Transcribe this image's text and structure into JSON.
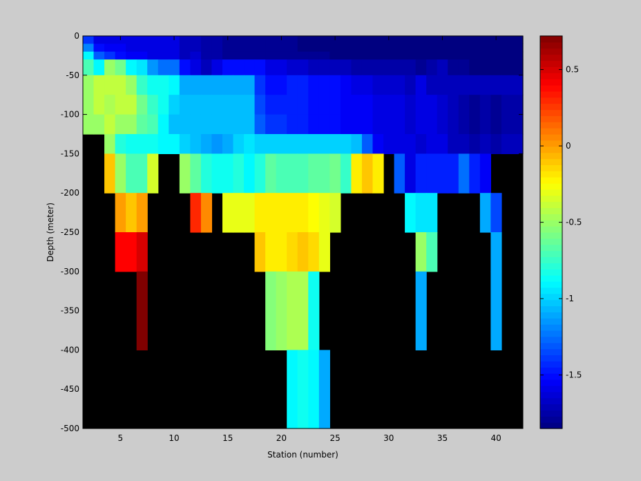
{
  "chart_data": {
    "type": "heatmap",
    "title": "",
    "xlabel": "Station (number)",
    "ylabel": "Depth (meter)",
    "xlim": [
      1.5,
      42.5
    ],
    "ylim": [
      -500,
      0
    ],
    "x": [
      2,
      3,
      4,
      5,
      6,
      7,
      8,
      9,
      10,
      11,
      12,
      13,
      14,
      15,
      16,
      17,
      18,
      19,
      20,
      21,
      22,
      23,
      24,
      25,
      26,
      27,
      28,
      29,
      30,
      31,
      32,
      33,
      34,
      35,
      36,
      37,
      38,
      39,
      40,
      41,
      42
    ],
    "depth_levels": [
      -5,
      -15,
      -25,
      -37.5,
      -62.5,
      -87.5,
      -112.5,
      -137.5,
      -175,
      -225,
      -275,
      -350,
      -450
    ],
    "depth_edges": [
      0,
      -10,
      -20,
      -30,
      -50,
      -75,
      -100,
      -125,
      -150,
      -200,
      -250,
      -300,
      -400,
      -500
    ],
    "xticks": [
      5,
      10,
      15,
      20,
      25,
      30,
      35,
      40
    ],
    "xticklabels": [
      "5",
      "10",
      "15",
      "20",
      "25",
      "30",
      "35",
      "40"
    ],
    "yticks": [
      0,
      -50,
      -100,
      -150,
      -200,
      -250,
      -300,
      -350,
      -400,
      -450,
      -500
    ],
    "yticklabels": [
      "0",
      "-50",
      "-100",
      "-150",
      "-200",
      "-250",
      "-300",
      "-350",
      "-400",
      "-450",
      "-500"
    ],
    "colorbar": {
      "clim": [
        -1.85,
        0.72
      ],
      "ticks": [
        -1.5,
        -1,
        -0.5,
        0,
        0.5
      ],
      "ticklabels": [
        "-1.5",
        "-1",
        "-0.5",
        "0",
        "0.5"
      ],
      "colormap": "jet"
    },
    "missing_color": "#000000",
    "background_color": "#cccccc",
    "values": [
      [
        -1.4,
        -1.6,
        -1.6,
        -1.6,
        -1.6,
        -1.6,
        -1.6,
        -1.6,
        -1.6,
        -1.7,
        -1.7,
        -1.75,
        -1.75,
        -1.8,
        -1.8,
        -1.8,
        -1.8,
        -1.8,
        -1.8,
        -1.8,
        -1.85,
        -1.85,
        -1.85,
        -1.85,
        -1.85,
        -1.85,
        -1.85,
        -1.85,
        -1.85,
        -1.85,
        -1.85,
        -1.85,
        -1.85,
        -1.85,
        -1.85,
        -1.85,
        -1.85,
        -1.85,
        -1.85,
        -1.85,
        -1.85
      ],
      [
        -1.2,
        -1.5,
        -1.55,
        -1.55,
        -1.6,
        -1.6,
        -1.6,
        -1.6,
        -1.6,
        -1.7,
        -1.7,
        -1.75,
        -1.75,
        -1.8,
        -1.8,
        -1.8,
        -1.8,
        -1.8,
        -1.8,
        -1.8,
        -1.85,
        -1.85,
        -1.85,
        -1.85,
        -1.85,
        -1.85,
        -1.85,
        -1.85,
        -1.85,
        -1.85,
        -1.85,
        -1.85,
        -1.85,
        -1.85,
        -1.85,
        -1.85,
        -1.85,
        -1.85,
        -1.85,
        -1.85,
        -1.85
      ],
      [
        -0.9,
        -1.3,
        -1.4,
        -1.5,
        -1.55,
        -1.55,
        -1.6,
        -1.6,
        -1.6,
        -1.7,
        -1.65,
        -1.75,
        -1.75,
        -1.8,
        -1.8,
        -1.8,
        -1.8,
        -1.8,
        -1.8,
        -1.8,
        -1.8,
        -1.8,
        -1.8,
        -1.85,
        -1.85,
        -1.85,
        -1.85,
        -1.85,
        -1.85,
        -1.85,
        -1.85,
        -1.85,
        -1.85,
        -1.85,
        -1.85,
        -1.85,
        -1.85,
        -1.85,
        -1.85,
        -1.85,
        -1.85
      ],
      [
        -0.7,
        -0.9,
        -0.5,
        -0.6,
        -0.9,
        -0.95,
        -1.15,
        -1.25,
        -1.25,
        -1.5,
        -1.6,
        -1.7,
        -1.6,
        -1.5,
        -1.5,
        -1.5,
        -1.5,
        -1.6,
        -1.6,
        -1.65,
        -1.65,
        -1.7,
        -1.7,
        -1.7,
        -1.7,
        -1.75,
        -1.75,
        -1.75,
        -1.75,
        -1.75,
        -1.75,
        -1.8,
        -1.75,
        -1.7,
        -1.8,
        -1.8,
        -1.85,
        -1.85,
        -1.85,
        -1.85,
        -1.85
      ],
      [
        -0.5,
        -0.4,
        -0.4,
        -0.4,
        -0.5,
        -0.75,
        -0.85,
        -0.85,
        -0.9,
        -1.1,
        -1.1,
        -1.1,
        -1.1,
        -1.1,
        -1.1,
        -1.1,
        -1.4,
        -1.5,
        -1.5,
        -1.45,
        -1.45,
        -1.5,
        -1.5,
        -1.5,
        -1.55,
        -1.6,
        -1.6,
        -1.65,
        -1.65,
        -1.65,
        -1.7,
        -1.6,
        -1.7,
        -1.7,
        -1.7,
        -1.7,
        -1.7,
        -1.7,
        -1.7,
        -1.7,
        -1.7
      ],
      [
        -0.5,
        -0.4,
        -0.45,
        -0.4,
        -0.4,
        -0.6,
        -0.75,
        -0.85,
        -1.0,
        -1.05,
        -1.05,
        -1.05,
        -1.05,
        -1.05,
        -1.05,
        -1.05,
        -1.35,
        -1.45,
        -1.45,
        -1.45,
        -1.45,
        -1.5,
        -1.5,
        -1.5,
        -1.55,
        -1.55,
        -1.55,
        -1.6,
        -1.6,
        -1.6,
        -1.65,
        -1.6,
        -1.6,
        -1.65,
        -1.7,
        -1.75,
        -1.8,
        -1.75,
        -1.8,
        -1.75,
        -1.75
      ],
      [
        -0.5,
        -0.5,
        -0.4,
        -0.5,
        -0.5,
        -0.65,
        -0.7,
        -0.9,
        -1.05,
        -1.05,
        -1.05,
        -1.05,
        -1.05,
        -1.05,
        -1.05,
        -1.05,
        -1.3,
        -1.4,
        -1.4,
        -1.45,
        -1.45,
        -1.5,
        -1.5,
        -1.5,
        -1.55,
        -1.55,
        -1.55,
        -1.6,
        -1.6,
        -1.6,
        -1.65,
        -1.6,
        -1.6,
        -1.65,
        -1.7,
        -1.75,
        -1.8,
        -1.75,
        -1.8,
        -1.75,
        -1.75
      ],
      [
        null,
        null,
        -0.5,
        -0.8,
        -0.85,
        -0.85,
        -0.85,
        -0.9,
        -0.9,
        -1.0,
        -1.05,
        -1.1,
        -1.15,
        -1.1,
        -1.0,
        -0.95,
        -1.0,
        -1.0,
        -1.0,
        -1.0,
        -1.0,
        -1.0,
        -1.0,
        -1.0,
        -1.0,
        -1.05,
        -1.3,
        -1.55,
        -1.6,
        -1.6,
        -1.6,
        -1.65,
        -1.6,
        -1.6,
        -1.7,
        -1.7,
        -1.75,
        -1.7,
        -1.75,
        -1.7,
        -1.7
      ],
      [
        null,
        null,
        -0.1,
        -0.5,
        -0.7,
        -0.7,
        -0.35,
        null,
        null,
        -0.5,
        -0.65,
        -0.8,
        -0.85,
        -0.85,
        -0.8,
        -0.9,
        -0.8,
        -0.65,
        -0.7,
        -0.7,
        -0.7,
        -0.65,
        -0.65,
        -0.6,
        -0.75,
        -0.2,
        -0.1,
        -0.2,
        null,
        -1.3,
        -1.6,
        -1.45,
        -1.45,
        -1.45,
        -1.45,
        -1.25,
        -1.45,
        -1.55,
        null,
        null,
        null
      ],
      [
        null,
        null,
        null,
        0.0,
        -0.1,
        0.0,
        null,
        null,
        null,
        null,
        0.3,
        0.05,
        null,
        -0.3,
        -0.3,
        -0.3,
        -0.2,
        -0.2,
        -0.2,
        -0.2,
        -0.2,
        -0.25,
        -0.3,
        -0.35,
        null,
        null,
        null,
        null,
        null,
        null,
        -0.9,
        -0.95,
        -0.95,
        null,
        null,
        null,
        null,
        -1.1,
        -1.35,
        null,
        null
      ],
      [
        null,
        null,
        null,
        0.4,
        0.4,
        0.5,
        null,
        null,
        null,
        null,
        null,
        null,
        null,
        null,
        null,
        null,
        -0.1,
        -0.2,
        -0.2,
        -0.15,
        -0.1,
        -0.15,
        -0.3,
        null,
        null,
        null,
        null,
        null,
        null,
        null,
        null,
        -0.5,
        -0.7,
        null,
        null,
        null,
        null,
        null,
        -1.1,
        null,
        null
      ],
      [
        null,
        null,
        null,
        null,
        null,
        0.72,
        null,
        null,
        null,
        null,
        null,
        null,
        null,
        null,
        null,
        null,
        null,
        -0.55,
        -0.5,
        -0.45,
        -0.45,
        -0.85,
        null,
        null,
        null,
        null,
        null,
        null,
        null,
        null,
        null,
        -1.1,
        null,
        null,
        null,
        null,
        null,
        null,
        -1.1,
        null,
        null
      ],
      [
        null,
        null,
        null,
        null,
        null,
        null,
        null,
        null,
        null,
        null,
        null,
        null,
        null,
        null,
        null,
        null,
        null,
        null,
        null,
        -0.9,
        -0.85,
        -0.9,
        -1.1,
        null,
        null,
        null,
        null,
        null,
        null,
        null,
        null,
        null,
        null,
        null,
        null,
        null,
        null,
        null,
        null,
        null,
        null
      ]
    ]
  }
}
